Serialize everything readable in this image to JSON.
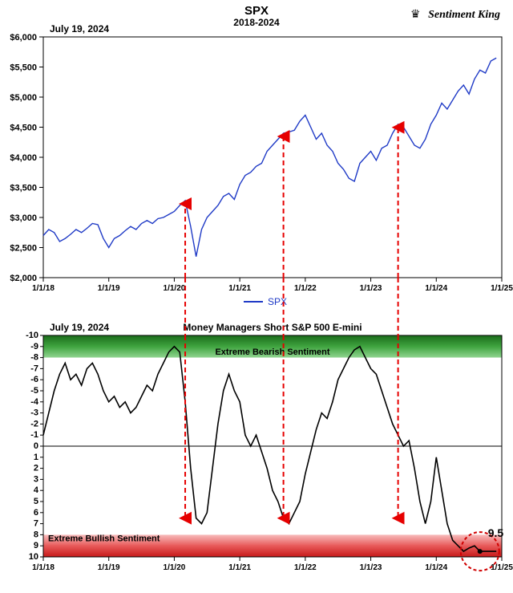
{
  "brand": "Sentiment King",
  "top": {
    "title": "SPX",
    "subtitle": "2018-2024",
    "date_label": "July 19, 2024",
    "legend": "SPX",
    "type": "line",
    "line_color": "#1f3ac6",
    "line_width": 1.4,
    "background_color": "#ffffff",
    "border_color": "#000000",
    "y": {
      "lim": [
        2000,
        6000
      ],
      "step": 500,
      "prefix": "$"
    },
    "x": {
      "ticks": [
        "1/1/18",
        "1/1/19",
        "1/1/20",
        "1/1/21",
        "1/1/22",
        "1/1/23",
        "1/1/24",
        "1/1/25"
      ],
      "lim": [
        0,
        84
      ]
    },
    "series": [
      2700,
      2800,
      2750,
      2600,
      2650,
      2720,
      2800,
      2750,
      2820,
      2900,
      2880,
      2650,
      2500,
      2650,
      2700,
      2780,
      2850,
      2800,
      2900,
      2950,
      2900,
      2980,
      3000,
      3050,
      3100,
      3200,
      3280,
      2850,
      2350,
      2800,
      3000,
      3100,
      3200,
      3350,
      3400,
      3300,
      3550,
      3700,
      3750,
      3850,
      3900,
      4100,
      4200,
      4300,
      4400,
      4420,
      4450,
      4600,
      4700,
      4500,
      4300,
      4400,
      4200,
      4100,
      3900,
      3800,
      3650,
      3600,
      3900,
      4000,
      4100,
      3950,
      4150,
      4200,
      4400,
      4550,
      4500,
      4350,
      4200,
      4150,
      4300,
      4550,
      4700,
      4900,
      4800,
      4950,
      5100,
      5200,
      5050,
      5300,
      5450,
      5400,
      5600,
      5650
    ]
  },
  "bottom": {
    "title": "Money Managers Short S&P 500 E-mini",
    "date_label": "July 19, 2024",
    "type": "line",
    "line_color": "#000000",
    "line_width": 1.6,
    "y": {
      "lim": [
        10,
        -10
      ],
      "ticks": [
        -10,
        -9,
        -8,
        -7,
        -6,
        -5,
        -4,
        -3,
        -2,
        -1,
        0,
        1,
        2,
        3,
        4,
        5,
        6,
        7,
        8,
        9,
        10
      ]
    },
    "zero_line_color": "#000000",
    "bearish": {
      "label": "Extreme Bearish Sentiment",
      "colors": [
        "#1b6b1b",
        "#3fa43f",
        "#8fd48f"
      ],
      "band": [
        -10,
        -8
      ]
    },
    "bullish": {
      "label": "Extreme Bullish Sentiment",
      "colors": [
        "#f7bcbc",
        "#e85a5a",
        "#c61a1a"
      ],
      "band": [
        8,
        10
      ]
    },
    "callout": {
      "value": "9.5",
      "circle_color": "#d00000",
      "circle_dash": "4,3",
      "dot_color": "#000000"
    },
    "series": [
      -1.0,
      -3.0,
      -5.0,
      -6.5,
      -7.5,
      -6.0,
      -6.5,
      -5.5,
      -7.0,
      -7.5,
      -6.5,
      -5.0,
      -4.0,
      -4.5,
      -3.5,
      -4.0,
      -3.0,
      -3.5,
      -4.5,
      -5.5,
      -5.0,
      -6.5,
      -7.5,
      -8.5,
      -9.0,
      -8.5,
      -4.0,
      2.0,
      6.5,
      7.0,
      6.0,
      2.0,
      -2.0,
      -5.0,
      -6.5,
      -5.0,
      -4.0,
      -1.0,
      0.0,
      -1.0,
      0.5,
      2.0,
      4.0,
      5.0,
      6.5,
      7.0,
      6.0,
      5.0,
      2.5,
      0.5,
      -1.5,
      -3.0,
      -2.5,
      -4.0,
      -6.0,
      -7.0,
      -8.0,
      -8.7,
      -9.0,
      -8.0,
      -7.0,
      -6.5,
      -5.0,
      -3.5,
      -2.0,
      -1.0,
      0.0,
      -0.5,
      2.0,
      5.0,
      7.0,
      5.0,
      1.0,
      4.0,
      7.0,
      8.5,
      9.0,
      9.5,
      9.2,
      9.0,
      9.5,
      9.5,
      9.5,
      9.5
    ]
  },
  "vertical_markers": {
    "color": "#e60000",
    "dash": "6,4",
    "positions": [
      26,
      44,
      65
    ]
  }
}
